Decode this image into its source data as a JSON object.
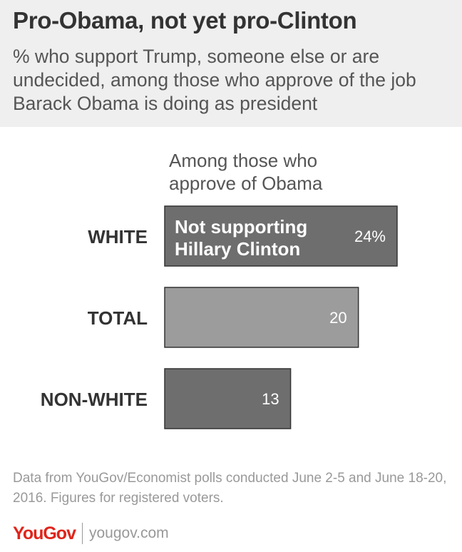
{
  "header": {
    "title": "Pro-Obama, not yet pro-Clinton",
    "subtitle": "% who support Trump, someone else or are undecided, among those who approve of the job Barack Obama is doing as president"
  },
  "chart_data": {
    "type": "bar",
    "orientation": "horizontal",
    "column_header": "Among those who approve of Obama",
    "categories": [
      "WHITE",
      "TOTAL",
      "NON-WHITE"
    ],
    "series": [
      {
        "name": "Not supporting Hillary Clinton",
        "values": [
          24,
          20,
          13
        ],
        "value_labels": [
          "24%",
          "20",
          "13"
        ]
      }
    ],
    "colors": [
      "#6e6e6e",
      "#9c9c9c",
      "#6e6e6e"
    ],
    "bar_border": "#333333",
    "xlim": [
      0,
      24
    ],
    "grid": false,
    "legend": "inside-first-bar"
  },
  "footer": {
    "note": "Data from YouGov/Economist polls conducted June 2-5 and June 18-20, 2016. Figures for registered voters.",
    "logo": "YouGov",
    "website": "yougov.com"
  }
}
